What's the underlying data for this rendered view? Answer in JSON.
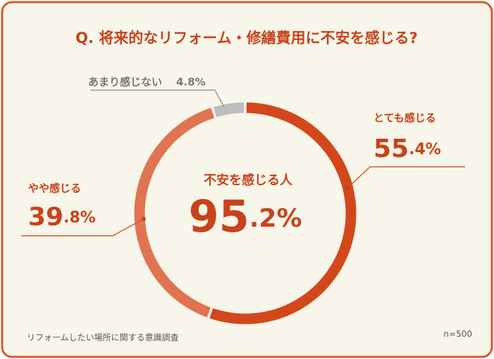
{
  "chart_data": {
    "type": "donut",
    "title": "Q. 将来的なリフォーム・修繕費用に不安を感じる?",
    "categories": [
      "とても感じる",
      "やや感じる",
      "あまり感じない"
    ],
    "values": [
      55.4,
      39.8,
      4.8
    ],
    "value_labels": [
      "55.4%",
      "39.8%",
      "4.8%"
    ],
    "colors": [
      "#d4471c",
      "#e07450",
      "#bdbdbd"
    ],
    "center": {
      "label": "不安を感じる人",
      "value": 95.2,
      "value_label": "95.2%"
    },
    "source": "リフォームしたい場所に関する意識調査",
    "sample": "n=500"
  }
}
